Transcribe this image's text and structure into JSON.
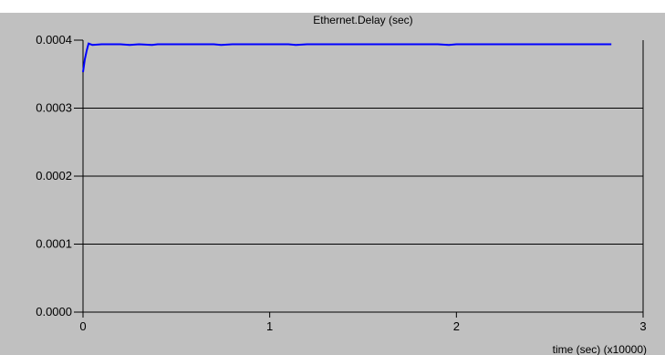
{
  "chart_data": {
    "type": "line",
    "title": "Ethernet.Delay (sec)",
    "xlabel": "time (sec) (x10000)",
    "ylabel": "",
    "xlim": [
      0,
      3
    ],
    "ylim": [
      0,
      0.0004
    ],
    "x_ticks": [
      "0",
      "1",
      "2",
      "3"
    ],
    "y_ticks": [
      "0.0000",
      "0.0001",
      "0.0002",
      "0.0003",
      "0.0004"
    ],
    "grid": true,
    "series": [
      {
        "color": "#0000ff",
        "x": [
          0.0,
          0.01,
          0.02,
          0.03,
          0.05,
          0.1,
          0.2,
          0.25,
          0.3,
          0.37,
          0.4,
          0.5,
          0.6,
          0.7,
          0.74,
          0.8,
          0.9,
          1.0,
          1.1,
          1.14,
          1.2,
          1.3,
          1.5,
          1.7,
          1.9,
          1.96,
          2.0,
          2.2,
          2.4,
          2.6,
          2.83
        ],
        "y": [
          0.000353,
          0.000372,
          0.000385,
          0.000395,
          0.000393,
          0.000394,
          0.000394,
          0.000393,
          0.000394,
          0.000393,
          0.000394,
          0.000394,
          0.000394,
          0.000394,
          0.000393,
          0.000394,
          0.000394,
          0.000394,
          0.000394,
          0.000393,
          0.000394,
          0.000394,
          0.000394,
          0.000394,
          0.000394,
          0.000393,
          0.000394,
          0.000394,
          0.000394,
          0.000394,
          0.000394
        ]
      }
    ]
  }
}
